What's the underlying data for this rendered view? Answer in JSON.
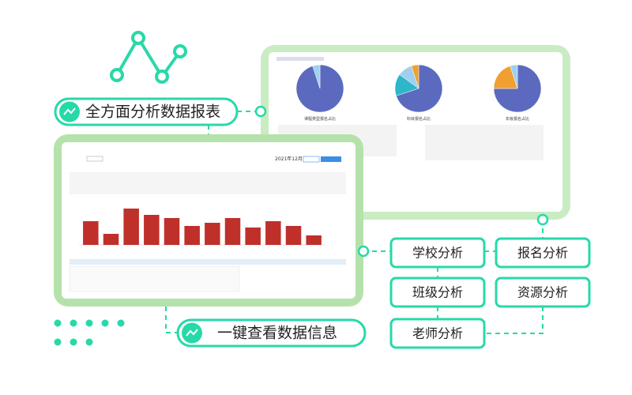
{
  "labels": {
    "top": "全方面分析数据报表",
    "bottom": "一键查看数据信息"
  },
  "buttons": [
    "学校分析",
    "报名分析",
    "班级分析",
    "资源分析",
    "老师分析"
  ],
  "dashboard": {
    "date": "2021年12月",
    "bar_chart": {
      "type": "bar",
      "color": "#c0302b",
      "ylim": [
        0,
        12
      ],
      "values": [
        7.5,
        3.5,
        11.5,
        9.5,
        8.5,
        6,
        7,
        8.5,
        5.5,
        7.5,
        6,
        3
      ]
    }
  },
  "pies": [
    {
      "type": "pie",
      "title": "课程类型报名占比",
      "values": [
        95,
        5
      ],
      "colors": [
        "#5b6abf",
        "#9fd0f0"
      ]
    },
    {
      "type": "pie",
      "title": "科目报名占比",
      "values": [
        70,
        15,
        10,
        5
      ],
      "colors": [
        "#5b6abf",
        "#2fb6c9",
        "#9fd0f0",
        "#f0a030"
      ]
    },
    {
      "type": "pie",
      "title": "年级报名占比",
      "values": [
        75,
        20,
        5
      ],
      "colors": [
        "#5b6abf",
        "#f0a030",
        "#9fd0f0"
      ]
    }
  ]
}
